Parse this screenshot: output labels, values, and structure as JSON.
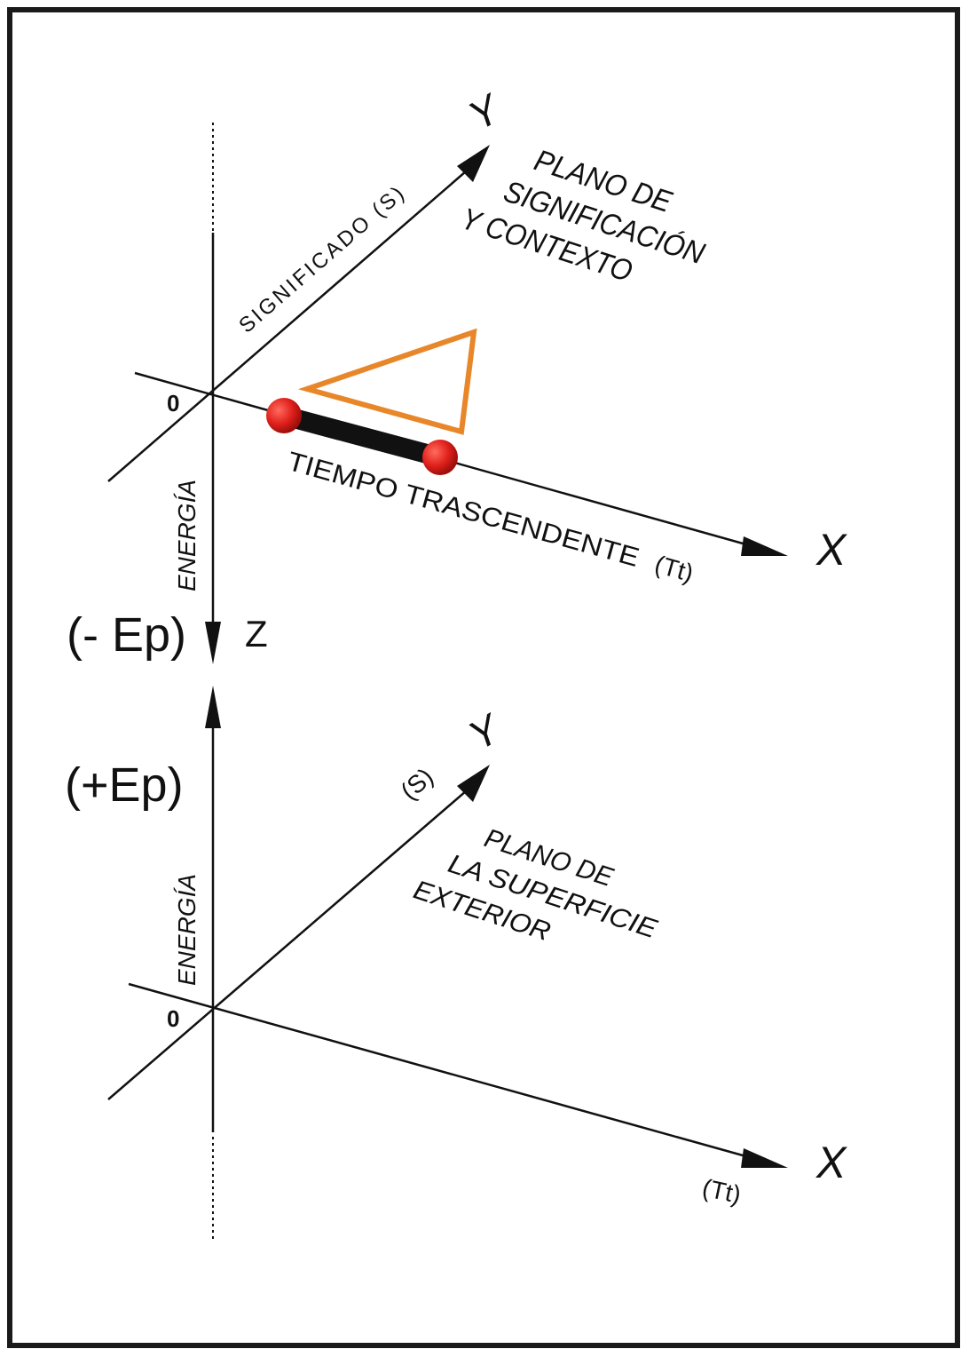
{
  "upper_plane": {
    "origin_label": "0",
    "y_axis_label": "Y",
    "y_axis_caption": "SIGNIFICADO (S)",
    "x_axis_label": "X",
    "x_axis_caption": "TIEMPO TRASCENDENTE",
    "x_axis_unit": "(Tt)",
    "plane_title_lines": [
      "PLANO DE",
      "SIGNIFICACIÓN",
      "Y CONTEXTO"
    ],
    "energy_label": "ENERGÍA"
  },
  "z_axis": {
    "label": "Z",
    "negative_label": "(- Ep)",
    "positive_label": "(+Ep)"
  },
  "lower_plane": {
    "origin_label": "0",
    "y_axis_label": "Y",
    "y_axis_caption": "(S)",
    "x_axis_label": "X",
    "x_axis_unit": "(Tt)",
    "plane_title_lines": [
      "PLANO DE",
      "LA SUPERFICIE",
      "EXTERIOR"
    ],
    "energy_label": "ENERGÍA"
  },
  "colors": {
    "frame": "#1a1a1a",
    "axes": "#111111",
    "triangle": "#e8872a",
    "segment": "#111111",
    "endpoints": "#e0201b"
  }
}
